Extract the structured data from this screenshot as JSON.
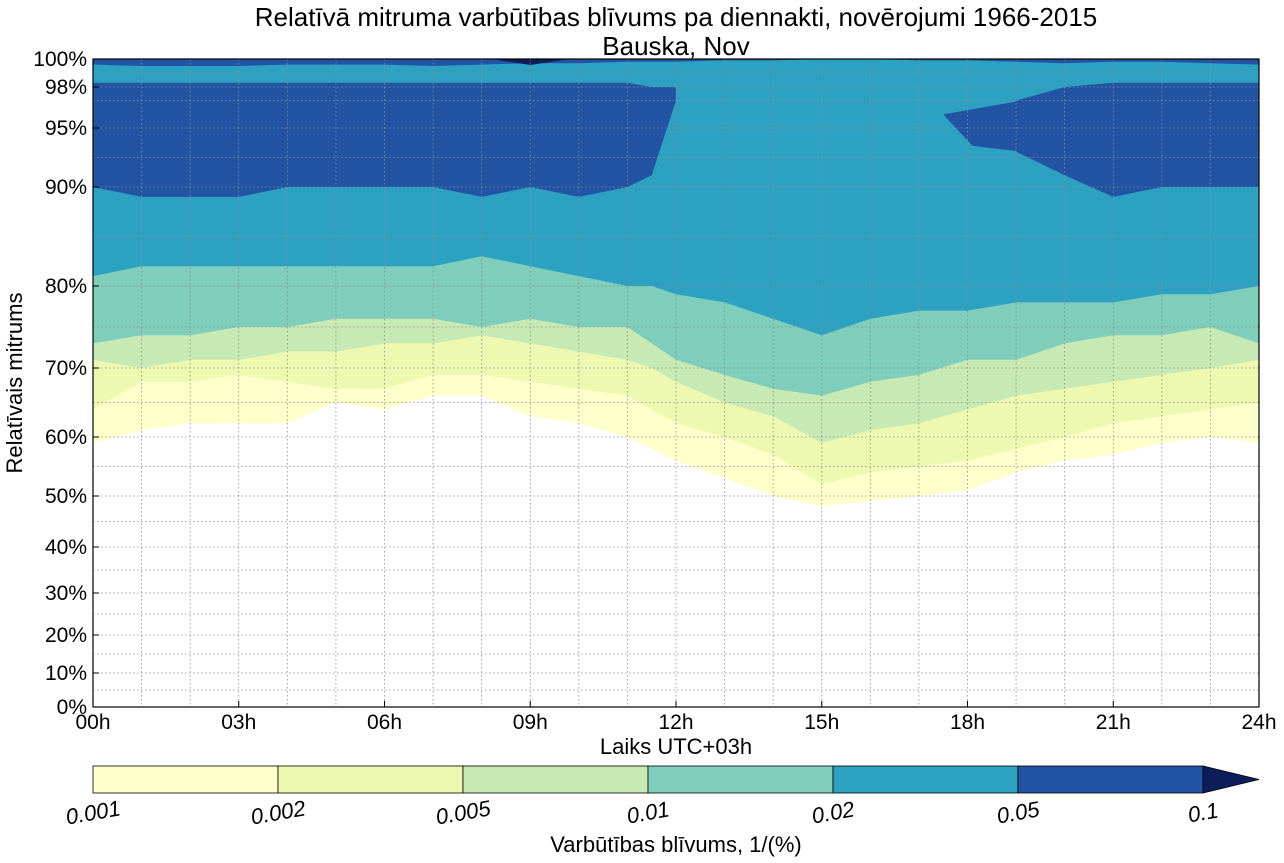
{
  "chart_data": {
    "type": "contour",
    "title": "Relatīvā mitruma varbūtības blīvums pa diennakti, novērojumi 1966-2015",
    "subtitle": "Bauska, Nov",
    "xlabel": "Laiks UTC+03h",
    "ylabel": "Relatīvais mitrums",
    "x_ticks": [
      "00h",
      "03h",
      "06h",
      "09h",
      "12h",
      "15h",
      "18h",
      "21h",
      "24h"
    ],
    "x_range_hours": [
      0,
      24
    ],
    "y_ticks": [
      "0%",
      "10%",
      "20%",
      "30%",
      "40%",
      "50%",
      "60%",
      "70%",
      "80%",
      "90%",
      "95%",
      "98%",
      "100%"
    ],
    "y_scale": "stretched toward 100% (nonlinear)",
    "grid": true,
    "colorbar": {
      "label": "Varbūtības blīvums, 1/(%)",
      "ticks": [
        "0.001",
        "0.002",
        "0.005",
        "0.01",
        "0.02",
        "0.05",
        "0.1"
      ],
      "levels": [
        0.001,
        0.002,
        0.005,
        0.01,
        0.02,
        0.05,
        0.1
      ],
      "colors": [
        "#ffffcc",
        "#edf8b1",
        "#c7e9b4",
        "#7fcdbb",
        "#2ca1c2",
        "#2254a3",
        "#0c1d5a"
      ],
      "extend": "max"
    },
    "x_hours": [
      0,
      1,
      2,
      3,
      4,
      5,
      6,
      7,
      8,
      9,
      10,
      11,
      11.5,
      12,
      13,
      14,
      15,
      16,
      17,
      18,
      19,
      20,
      21,
      22,
      23,
      24
    ],
    "contour_lower_bounds_pct": {
      "0.001": [
        59,
        61,
        62,
        62,
        62,
        65,
        64,
        66,
        66,
        63,
        62,
        60,
        58,
        56,
        53,
        50,
        48,
        49,
        50,
        51,
        54,
        56,
        57,
        59,
        60,
        59
      ],
      "0.002": [
        64,
        68,
        68,
        69,
        68,
        67,
        67,
        69,
        69,
        68,
        67,
        66,
        64,
        62,
        60,
        57,
        52,
        54,
        55,
        56,
        58,
        60,
        62,
        63,
        64,
        65
      ],
      "0.005": [
        71,
        70,
        71,
        71,
        72,
        72,
        73,
        73,
        74,
        73,
        72,
        71,
        70,
        68,
        65,
        63,
        59,
        61,
        62,
        64,
        66,
        67,
        68,
        69,
        70,
        71
      ],
      "0.01": [
        73,
        74,
        74,
        75,
        75,
        76,
        76,
        76,
        75,
        76,
        75,
        75,
        73,
        71,
        69,
        67,
        66,
        68,
        69,
        71,
        71,
        73,
        74,
        74,
        75,
        73
      ],
      "0.02": [
        81,
        82,
        82,
        82,
        82,
        82,
        82,
        82,
        83,
        82,
        81,
        80,
        80,
        79,
        78,
        76,
        74,
        76,
        77,
        77,
        78,
        78,
        78,
        79,
        79,
        80
      ],
      "0.05_lower": [
        90,
        89,
        89,
        89,
        90,
        90,
        90,
        90,
        89,
        90,
        89,
        90,
        91,
        97,
        null,
        null,
        null,
        null,
        null,
        null,
        93,
        91,
        89,
        90,
        90,
        90
      ],
      "0.05_upper": [
        98.3,
        98.3,
        98.3,
        98.3,
        98.3,
        98.3,
        98.3,
        98.3,
        98.3,
        98.3,
        98.3,
        98.3,
        98,
        98,
        null,
        null,
        null,
        null,
        null,
        null,
        97,
        98,
        98.3,
        98.3,
        98.3,
        98.3
      ],
      "top_band": [
        99.6,
        99.5,
        99.5,
        99.5,
        99.6,
        99.6,
        99.6,
        99.5,
        99.6,
        99.7,
        99.7,
        99.8,
        99.8,
        99.8,
        99.9,
        99.9,
        100,
        100,
        99.9,
        99.9,
        99.8,
        99.7,
        99.8,
        99.8,
        99.7,
        99.6
      ]
    }
  }
}
